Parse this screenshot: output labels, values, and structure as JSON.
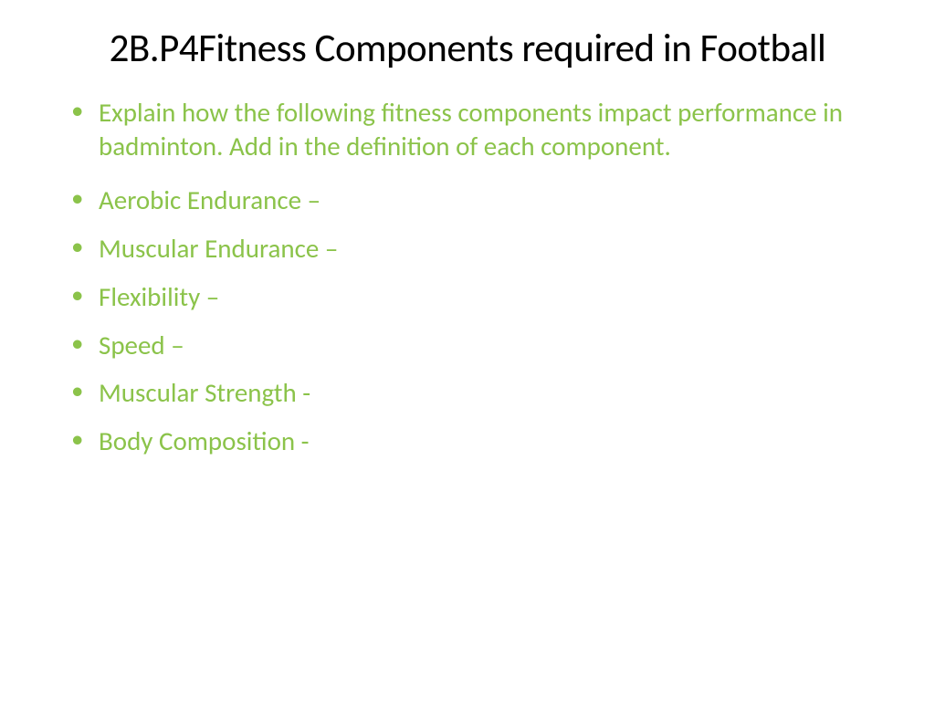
{
  "slide": {
    "title": "2B.P4Fitness Components required in Football",
    "bullets": [
      {
        "text": "Explain how the following fitness components impact performance in badminton. Add in the definition of each component.",
        "class": "intro"
      },
      {
        "text": "Aerobic Endurance –",
        "class": ""
      },
      {
        "text": "Muscular Endurance –",
        "class": ""
      },
      {
        "text": "Flexibility –",
        "class": ""
      },
      {
        "text": "Speed –",
        "class": ""
      },
      {
        "text": "Muscular Strength -",
        "class": ""
      },
      {
        "text": "Body Composition -",
        "class": ""
      }
    ],
    "colors": {
      "title_color": "#000000",
      "bullet_color": "#8bc34a",
      "background_color": "#ffffff"
    },
    "typography": {
      "title_fontsize": 43,
      "bullet_fontsize": 29,
      "font_family": "Calibri"
    }
  }
}
